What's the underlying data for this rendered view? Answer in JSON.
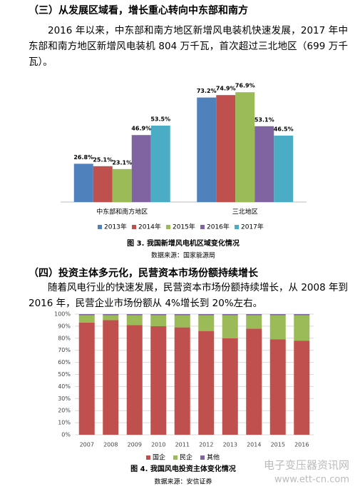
{
  "document": {
    "heading1": "（三）从发展区域看，增长重心转向中东部和南方",
    "paragraph1": "2016 年以来，中东部和南方地区新增风电装机快速发展，2017 年中东部和南方地区新增风电装机 804 万千瓦，首次超过三北地区（699 万千瓦）。",
    "heading2": "（四）投资主体多元化，民营资本市场份额持续增长",
    "paragraph2": "随着风电行业的快速发展，民营资本市场份额持续增长，从 2008 年到 2016 年，民营企业市场份额从 4%增长到 20%左右。",
    "watermark": "电子变压器资讯网",
    "watermark_url": "www.ett-cn.com"
  },
  "chart_data": [
    {
      "type": "bar",
      "title": "图 3. 我国新增风电机区域变化情况",
      "source": "数据来源：国家能源局",
      "categories": [
        "中东部和南方地区",
        "三北地区"
      ],
      "series": [
        {
          "name": "2013年",
          "color": "#4f81bd",
          "values": [
            26.8,
            73.2
          ],
          "value_labels": [
            "26.8%",
            "73.2%"
          ]
        },
        {
          "name": "2014年",
          "color": "#c0504d",
          "values": [
            25.1,
            74.9
          ],
          "value_labels": [
            "25.1%",
            "74.9%"
          ]
        },
        {
          "name": "2015年",
          "color": "#9bbb59",
          "values": [
            23.1,
            76.9
          ],
          "value_labels": [
            "23.1%",
            "76.9%"
          ]
        },
        {
          "name": "2016年",
          "color": "#8064a2",
          "values": [
            46.9,
            53.1
          ],
          "value_labels": [
            "46.9%",
            "53.1%"
          ]
        },
        {
          "name": "2017年",
          "color": "#4bacc6",
          "values": [
            53.5,
            46.5
          ],
          "value_labels": [
            "53.5%",
            "46.5%"
          ]
        }
      ],
      "legend": "bottom"
    },
    {
      "type": "stacked_bar",
      "title": "图 4. 我国风电投资主体变化情况",
      "source": "数据来源：安信证券",
      "categories": [
        "2007",
        "2008",
        "2009",
        "2010",
        "2011",
        "2012",
        "2013",
        "2014",
        "2015",
        "2016"
      ],
      "series": [
        {
          "name": "国企",
          "color": "#c0504d",
          "values": [
            93,
            95,
            91,
            90,
            89,
            86,
            80,
            88,
            79,
            78
          ]
        },
        {
          "name": "民企",
          "color": "#9bbb59",
          "values": [
            6,
            4,
            8,
            9,
            10,
            13,
            19,
            11,
            20,
            21
          ]
        },
        {
          "name": "其他",
          "color": "#8064a2",
          "values": [
            1,
            1,
            1,
            1,
            1,
            1,
            1,
            1,
            1,
            1
          ]
        }
      ],
      "ylim": [
        0,
        100
      ],
      "yticks": [
        {
          "value": 0,
          "label": "0%"
        },
        {
          "value": 10,
          "label": "10%"
        },
        {
          "value": 20,
          "label": "20%"
        },
        {
          "value": 30,
          "label": "30%"
        },
        {
          "value": 40,
          "label": "40%"
        },
        {
          "value": 50,
          "label": "50%"
        },
        {
          "value": 60,
          "label": "60%"
        },
        {
          "value": 70,
          "label": "70%"
        },
        {
          "value": 80,
          "label": "80%"
        },
        {
          "value": 90,
          "label": "90%"
        },
        {
          "value": 100,
          "label": "100%"
        }
      ],
      "grid": true,
      "legend": "bottom"
    }
  ]
}
